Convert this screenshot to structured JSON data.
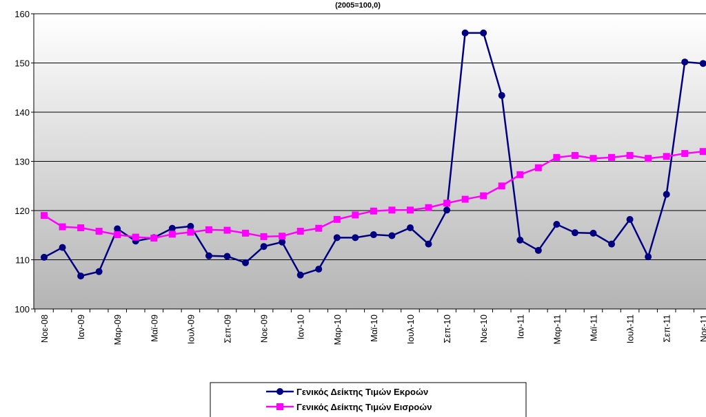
{
  "chart_data": {
    "type": "line",
    "title": "(2005=100,0)",
    "categories": [
      "Νοε-08",
      null,
      "Ιαν-09",
      null,
      "Μαρ-09",
      null,
      "Μαϊ-09",
      null,
      "Ιουλ-09",
      null,
      "Σεπ-09",
      null,
      "Νοε-09",
      null,
      "Ιαν-10",
      null,
      "Μαρ-10",
      null,
      "Μαϊ-10",
      null,
      "Ιουλ-10",
      null,
      "Σεπ-10",
      null,
      "Νοε-10",
      null,
      "Ιαν-11",
      null,
      "Μαρ-11",
      null,
      "Μαϊ-11",
      null,
      "Ιουλ-11",
      null,
      "Σεπ-11",
      null,
      "Νοε-11"
    ],
    "series": [
      {
        "name": "Γενικός Δείκτης Τιμών Εκροών",
        "color": "#000080",
        "marker": "circle",
        "values": [
          110.5,
          112.5,
          106.7,
          107.6,
          116.3,
          113.8,
          114.5,
          116.4,
          116.8,
          110.8,
          110.7,
          109.4,
          112.7,
          113.6,
          106.9,
          108.1,
          114.5,
          114.5,
          115.1,
          114.9,
          116.5,
          113.2,
          120.1,
          156.1,
          156.1,
          143.4,
          114.0,
          111.9,
          117.2,
          115.5,
          115.4,
          113.2,
          118.2,
          110.6,
          123.3,
          150.2,
          149.9
        ]
      },
      {
        "name": "Γενικός Δείκτης Τιμών Εισροών",
        "color": "#ff00ff",
        "marker": "square",
        "values": [
          119.0,
          116.7,
          116.5,
          115.8,
          115.1,
          114.6,
          114.4,
          115.2,
          115.6,
          116.1,
          116.0,
          115.4,
          114.7,
          114.8,
          115.8,
          116.4,
          118.2,
          119.1,
          119.9,
          120.1,
          120.1,
          120.6,
          121.5,
          122.3,
          123.0,
          125.0,
          127.3,
          128.7,
          130.8,
          131.2,
          130.6,
          130.8,
          131.2,
          130.6,
          131.0,
          131.6,
          132.0
        ]
      }
    ],
    "ylim": [
      100,
      160
    ],
    "yticks": [
      100,
      110,
      120,
      130,
      140,
      150,
      160
    ],
    "grid": true
  }
}
